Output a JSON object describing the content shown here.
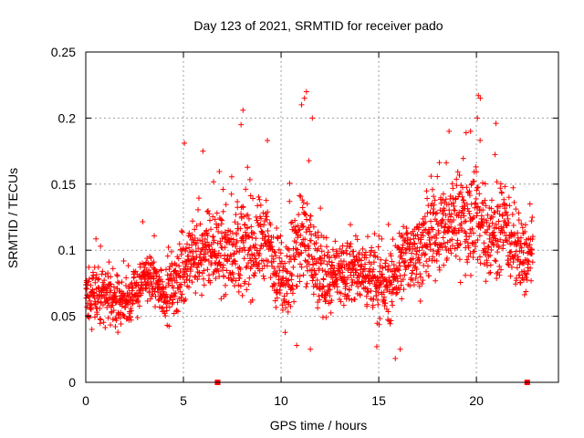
{
  "chart_data": {
    "type": "scatter",
    "title": "Day 123 of 2021, SRMTID for receiver pado",
    "xlabel": "GPS time / hours",
    "ylabel": "SRMTID / TECUs",
    "xlim": [
      0,
      24.2
    ],
    "ylim": [
      0,
      0.25
    ],
    "x_ticks": [
      0,
      5,
      10,
      15,
      20
    ],
    "x_tick_labels": [
      "0",
      "5",
      "10",
      "15",
      "20"
    ],
    "y_ticks": [
      0,
      0.05,
      0.1,
      0.15,
      0.2,
      0.25
    ],
    "y_tick_labels": [
      "0",
      "0.05",
      "0.1",
      "0.15",
      "0.2",
      "0.25"
    ],
    "grid": true,
    "marker": "+",
    "color": "#ff0000",
    "baseline_markers_x": [
      6.75,
      22.6
    ],
    "series": [
      {
        "name": "SRMTID",
        "trend": {
          "x": [
            0,
            0.5,
            1,
            1.5,
            2,
            2.5,
            3,
            3.5,
            4,
            4.5,
            5,
            5.5,
            6,
            6.5,
            7,
            7.5,
            8,
            8.5,
            9,
            9.5,
            10,
            10.5,
            11,
            11.5,
            12,
            12.5,
            13,
            13.5,
            14,
            14.5,
            15,
            15.5,
            16,
            16.5,
            17,
            17.5,
            18,
            18.5,
            19,
            19.5,
            20,
            20.5,
            21,
            21.5,
            22,
            22.5,
            22.9
          ],
          "y": [
            0.062,
            0.07,
            0.062,
            0.062,
            0.06,
            0.068,
            0.08,
            0.076,
            0.068,
            0.072,
            0.085,
            0.095,
            0.098,
            0.1,
            0.1,
            0.098,
            0.105,
            0.1,
            0.11,
            0.1,
            0.075,
            0.085,
            0.11,
            0.1,
            0.08,
            0.078,
            0.078,
            0.085,
            0.083,
            0.08,
            0.075,
            0.07,
            0.085,
            0.098,
            0.1,
            0.105,
            0.115,
            0.12,
            0.125,
            0.12,
            0.13,
            0.11,
            0.115,
            0.115,
            0.1,
            0.09,
            0.1
          ]
        },
        "spread": {
          "x": [
            0,
            3,
            5,
            6,
            7.5,
            8,
            9,
            10,
            11,
            11.5,
            12,
            13,
            14,
            15,
            16,
            17,
            18,
            19,
            20,
            21,
            22,
            22.9
          ],
          "y": [
            0.025,
            0.022,
            0.03,
            0.035,
            0.04,
            0.045,
            0.04,
            0.04,
            0.055,
            0.05,
            0.035,
            0.03,
            0.032,
            0.03,
            0.033,
            0.035,
            0.04,
            0.045,
            0.05,
            0.04,
            0.035,
            0.03
          ]
        },
        "spikes": [
          {
            "x": 11.3,
            "y": 0.22
          },
          {
            "x": 11.2,
            "y": 0.215
          },
          {
            "x": 11.05,
            "y": 0.21
          },
          {
            "x": 11.6,
            "y": 0.2
          },
          {
            "x": 20.1,
            "y": 0.217
          },
          {
            "x": 20.2,
            "y": 0.215
          },
          {
            "x": 20.05,
            "y": 0.2
          },
          {
            "x": 8.05,
            "y": 0.206
          },
          {
            "x": 7.95,
            "y": 0.195
          },
          {
            "x": 19.7,
            "y": 0.19
          },
          {
            "x": 21.0,
            "y": 0.196
          },
          {
            "x": 18.6,
            "y": 0.19
          },
          {
            "x": 5.05,
            "y": 0.181
          },
          {
            "x": 6.0,
            "y": 0.175
          },
          {
            "x": 9.3,
            "y": 0.183
          },
          {
            "x": 16.1,
            "y": 0.025
          },
          {
            "x": 15.85,
            "y": 0.018
          },
          {
            "x": 10.8,
            "y": 0.028
          },
          {
            "x": 11.5,
            "y": 0.025
          },
          {
            "x": 14.9,
            "y": 0.027
          }
        ],
        "n_points": 2200
      }
    ]
  }
}
